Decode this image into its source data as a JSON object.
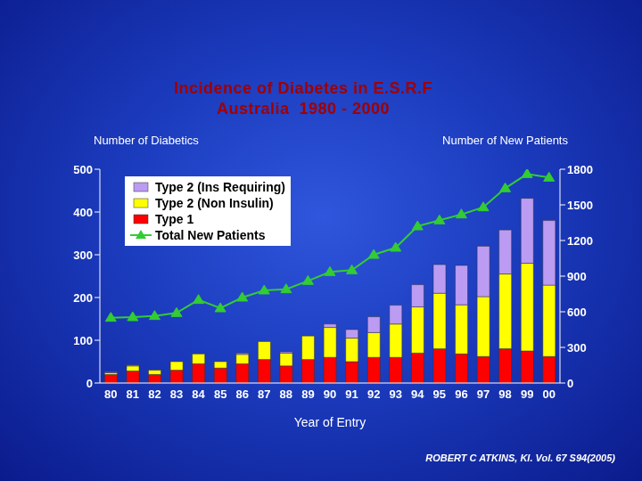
{
  "chart_data": {
    "type": "bar",
    "title": "Incidence of Diabetes in E.S.R.F",
    "subtitle": "Australia  1980 - 2000",
    "x_label": "Year of Entry",
    "y_label": "Number of Diabetics",
    "y2_label": "Number of New Patients",
    "annotations": [
      "ROBERT C ATKINS, KI. Vol. 67 S94(2005)"
    ],
    "categories": [
      "80",
      "81",
      "82",
      "83",
      "84",
      "85",
      "86",
      "87",
      "88",
      "89",
      "90",
      "91",
      "92",
      "93",
      "94",
      "95",
      "96",
      "97",
      "98",
      "99",
      "00"
    ],
    "series": [
      {
        "name": "Type 1",
        "type": "bar",
        "color": "#ff0000",
        "values": [
          20,
          28,
          20,
          30,
          45,
          35,
          45,
          55,
          40,
          55,
          60,
          50,
          60,
          60,
          70,
          80,
          68,
          62,
          80,
          75,
          62
        ]
      },
      {
        "name": "Type 2 (Non Insulin)",
        "type": "bar",
        "color": "#ffff00",
        "values": [
          4,
          12,
          10,
          20,
          23,
          15,
          22,
          42,
          30,
          55,
          70,
          55,
          58,
          78,
          108,
          130,
          115,
          140,
          175,
          205,
          167
        ]
      },
      {
        "name": "Type 2 (Ins Requiring)",
        "type": "bar",
        "color": "#bb9cf2",
        "values": [
          2,
          2,
          0,
          0,
          0,
          0,
          3,
          0,
          3,
          0,
          8,
          20,
          37,
          44,
          52,
          67,
          92,
          118,
          103,
          152,
          151
        ]
      },
      {
        "name": "Total New Patients",
        "type": "line",
        "axis": "y2",
        "color": "#33cc33",
        "marker": "triangle",
        "values": [
          550,
          555,
          565,
          590,
          700,
          630,
          720,
          780,
          790,
          860,
          935,
          950,
          1080,
          1140,
          1320,
          1370,
          1420,
          1480,
          1640,
          1760,
          1730
        ]
      }
    ],
    "stacked": true,
    "ylim": [
      0,
      500
    ],
    "yticks": [
      0,
      100,
      200,
      300,
      400,
      500
    ],
    "y2lim": [
      0,
      1800
    ],
    "y2ticks": [
      0,
      300,
      600,
      900,
      1200,
      1500,
      1800
    ],
    "grid": false,
    "legend": "upper left"
  }
}
